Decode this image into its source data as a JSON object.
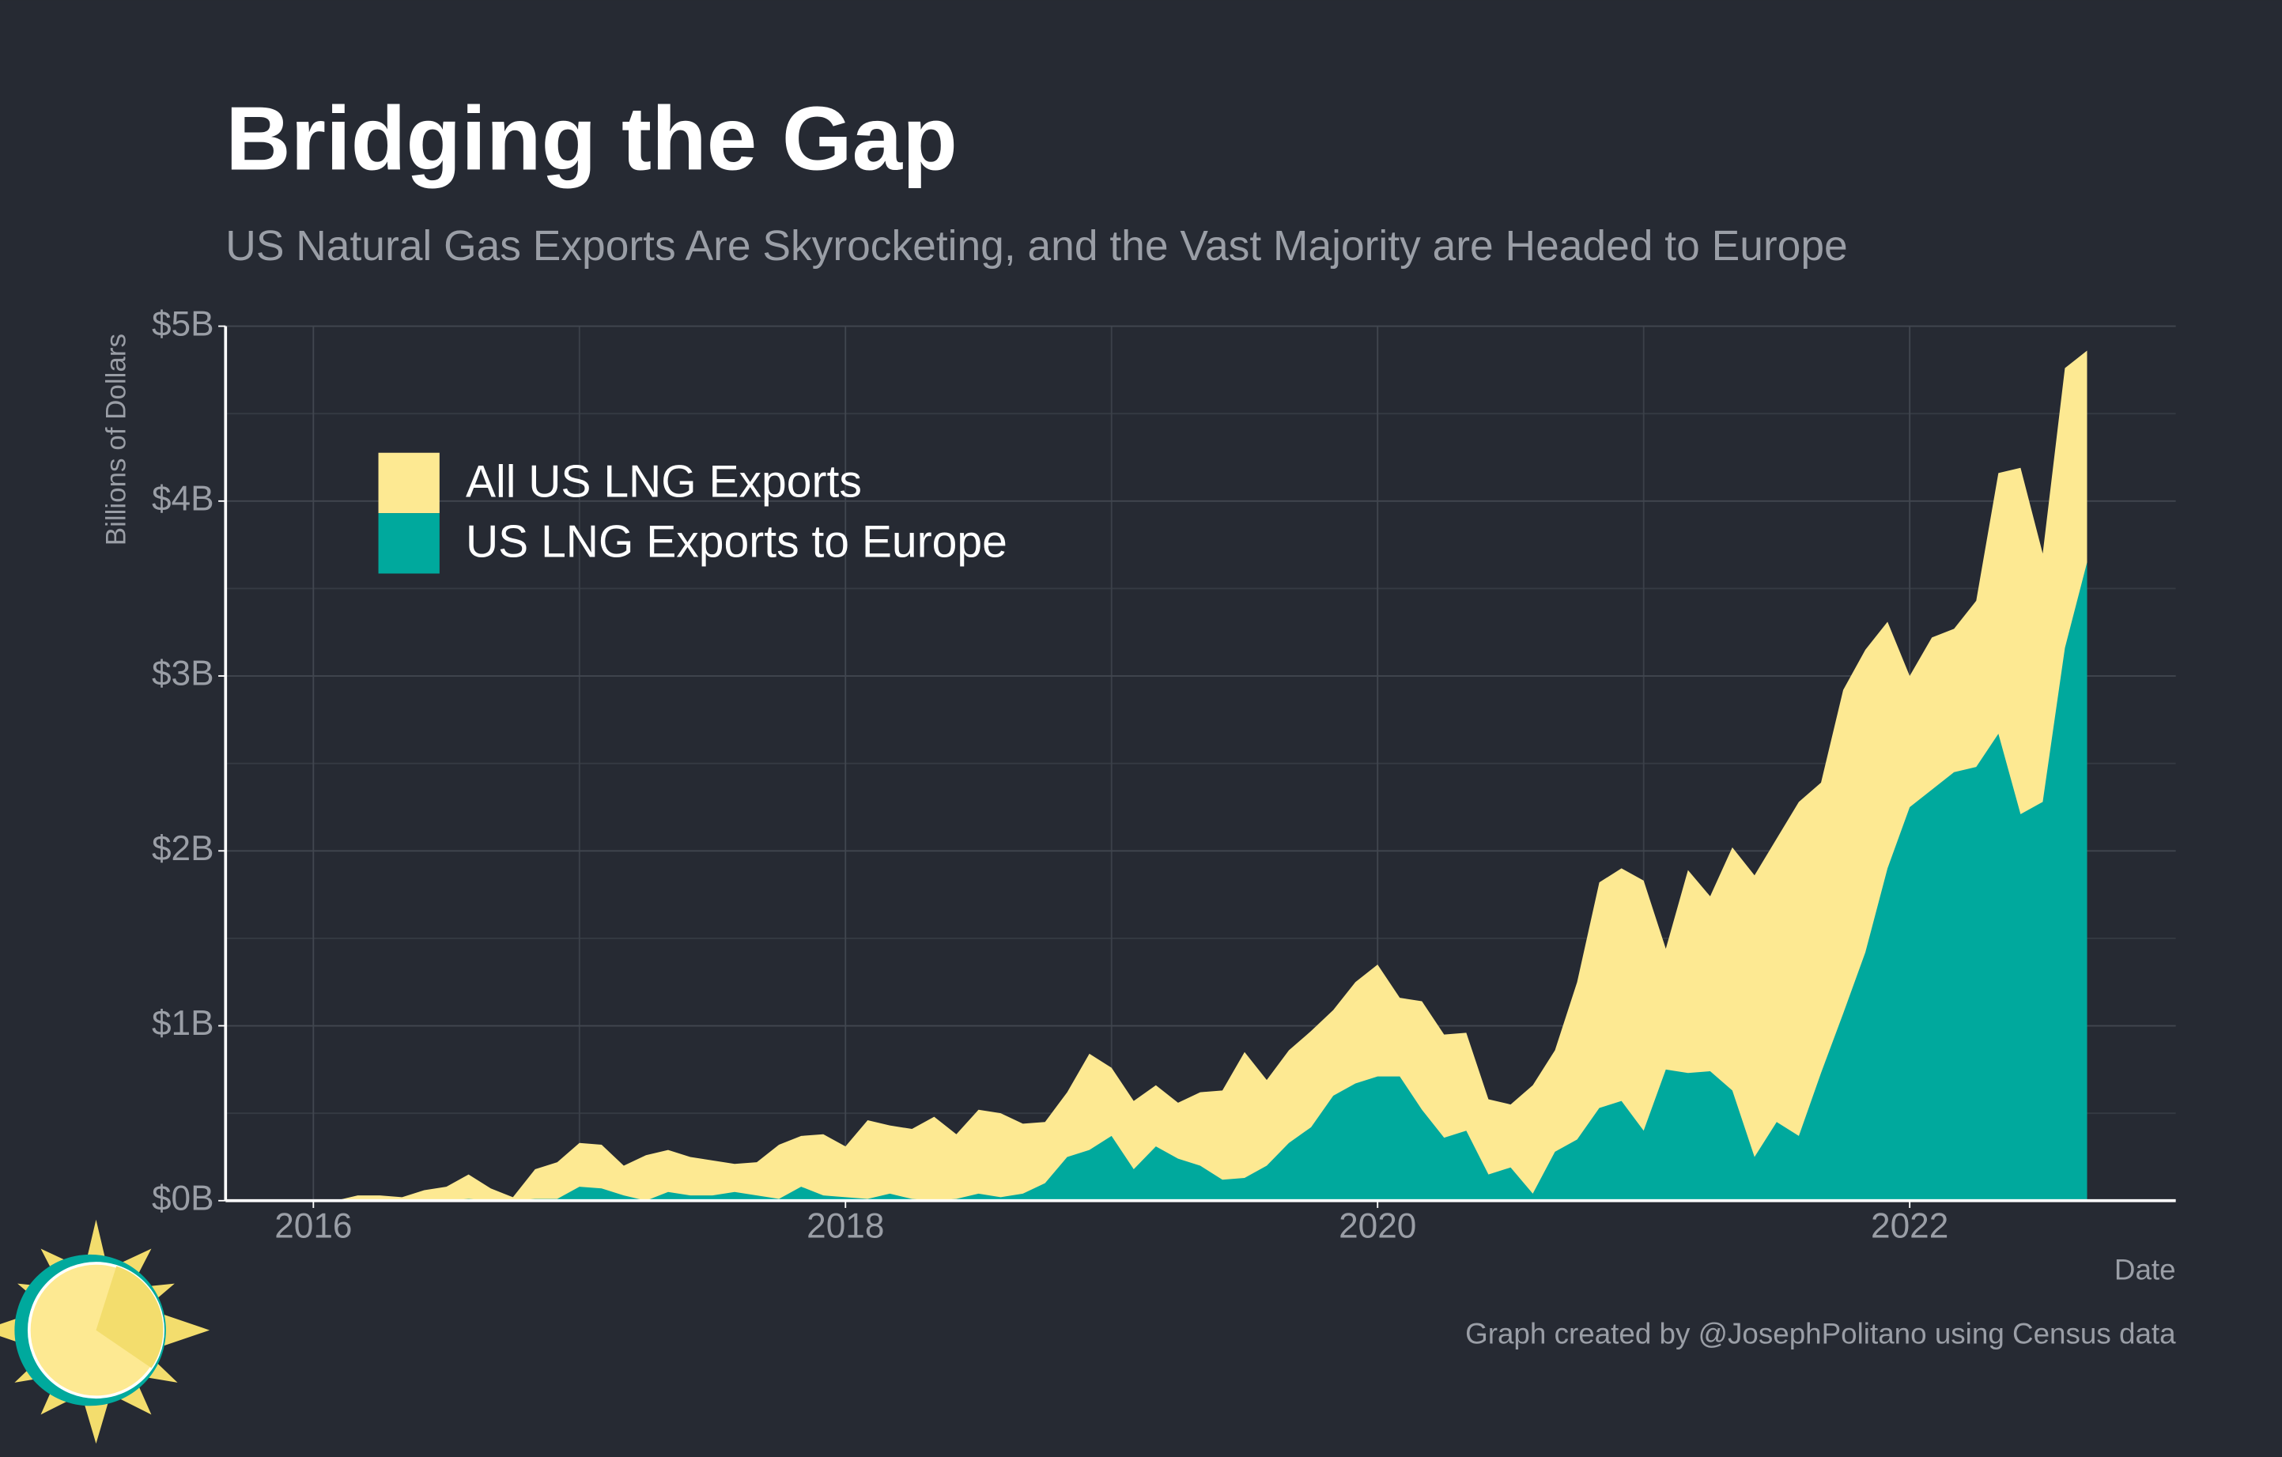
{
  "chart_data": {
    "type": "area",
    "title": "Bridging the Gap",
    "subtitle": "US Natural Gas Exports Are Skyrocketing, and the Vast Majority are Headed to Europe",
    "y_label": "Billions of Dollars",
    "x_label": "Date",
    "caption": "Graph created by @JosephPolitano using Census data",
    "x": [
      "2016-01",
      "2016-02",
      "2016-03",
      "2016-04",
      "2016-05",
      "2016-06",
      "2016-07",
      "2016-08",
      "2016-09",
      "2016-10",
      "2016-11",
      "2016-12",
      "2017-01",
      "2017-02",
      "2017-03",
      "2017-04",
      "2017-05",
      "2017-06",
      "2017-07",
      "2017-08",
      "2017-09",
      "2017-10",
      "2017-11",
      "2017-12",
      "2018-01",
      "2018-02",
      "2018-03",
      "2018-04",
      "2018-05",
      "2018-06",
      "2018-07",
      "2018-08",
      "2018-09",
      "2018-10",
      "2018-11",
      "2018-12",
      "2019-01",
      "2019-02",
      "2019-03",
      "2019-04",
      "2019-05",
      "2019-06",
      "2019-07",
      "2019-08",
      "2019-09",
      "2019-10",
      "2019-11",
      "2019-12",
      "2020-01",
      "2020-02",
      "2020-03",
      "2020-04",
      "2020-05",
      "2020-06",
      "2020-07",
      "2020-08",
      "2020-09",
      "2020-10",
      "2020-11",
      "2020-12",
      "2021-01",
      "2021-02",
      "2021-03",
      "2021-04",
      "2021-05",
      "2021-06",
      "2021-07",
      "2021-08",
      "2021-09",
      "2021-10",
      "2021-11",
      "2021-12",
      "2022-01",
      "2022-02",
      "2022-03",
      "2022-04",
      "2022-05",
      "2022-06",
      "2022-07",
      "2022-08",
      "2022-09"
    ],
    "series": [
      {
        "name": "All US LNG Exports",
        "color": "#fde992",
        "values": [
          0.0,
          0.0,
          0.03,
          0.03,
          0.02,
          0.06,
          0.08,
          0.15,
          0.07,
          0.02,
          0.18,
          0.22,
          0.33,
          0.32,
          0.2,
          0.26,
          0.29,
          0.25,
          0.23,
          0.21,
          0.22,
          0.32,
          0.37,
          0.38,
          0.31,
          0.46,
          0.43,
          0.41,
          0.48,
          0.38,
          0.52,
          0.5,
          0.44,
          0.45,
          0.62,
          0.84,
          0.76,
          0.57,
          0.66,
          0.56,
          0.62,
          0.63,
          0.85,
          0.69,
          0.86,
          0.97,
          1.09,
          1.25,
          1.35,
          1.16,
          1.14,
          0.95,
          0.96,
          0.58,
          0.55,
          0.66,
          0.86,
          1.25,
          1.82,
          1.9,
          1.83,
          1.44,
          1.89,
          1.74,
          2.02,
          1.86,
          2.07,
          2.28,
          2.39,
          2.92,
          3.15,
          3.31,
          3.0,
          3.22,
          3.27,
          3.43,
          4.16,
          4.19,
          3.7,
          4.76,
          4.86
        ]
      },
      {
        "name": "US LNG Exports to Europe",
        "color": "#00a99d",
        "values": [
          0,
          0,
          0,
          0,
          0,
          0,
          0,
          0.01,
          0,
          0,
          0.01,
          0.01,
          0.08,
          0.07,
          0.03,
          0.0,
          0.05,
          0.03,
          0.03,
          0.05,
          0.03,
          0.01,
          0.08,
          0.03,
          0.02,
          0.01,
          0.04,
          0.01,
          0.0,
          0.01,
          0.04,
          0.02,
          0.04,
          0.1,
          0.25,
          0.29,
          0.37,
          0.18,
          0.31,
          0.24,
          0.2,
          0.12,
          0.13,
          0.2,
          0.33,
          0.42,
          0.6,
          0.67,
          0.71,
          0.71,
          0.52,
          0.36,
          0.4,
          0.15,
          0.19,
          0.04,
          0.28,
          0.35,
          0.53,
          0.57,
          0.4,
          0.75,
          0.73,
          0.74,
          0.63,
          0.25,
          0.45,
          0.37,
          0.73,
          1.07,
          1.42,
          1.9,
          2.25,
          2.35,
          2.45,
          2.48,
          2.67,
          2.21,
          2.28,
          3.16,
          3.65
        ]
      }
    ],
    "xlim": [
      2015.67,
      2023.0
    ],
    "xticks": [
      2016,
      2018,
      2020,
      2022
    ],
    "xminorticks": [
      2017,
      2019,
      2021
    ],
    "ylim": [
      0,
      5
    ],
    "yticks": [
      {
        "value": 0,
        "label": "$0B"
      },
      {
        "value": 1,
        "label": "$1B"
      },
      {
        "value": 2,
        "label": "$2B"
      },
      {
        "value": 3,
        "label": "$3B"
      },
      {
        "value": 4,
        "label": "$4B"
      },
      {
        "value": 5,
        "label": "$5B"
      }
    ],
    "yminorticks": [
      0.5,
      1.5,
      2.5,
      3.5,
      4.5
    ],
    "grid": true,
    "legend": "top-left"
  }
}
